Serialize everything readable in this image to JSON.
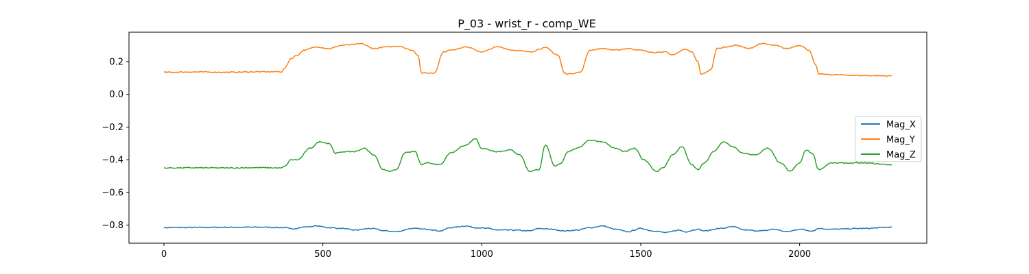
{
  "chart_data": {
    "type": "line",
    "title": "P_03 - wrist_r - comp_WE",
    "xlabel": "",
    "ylabel": "",
    "xlim": [
      -110,
      2400
    ],
    "ylim": [
      -0.91,
      0.38
    ],
    "xticks": [
      0,
      500,
      1000,
      1500,
      2000
    ],
    "xtick_labels": [
      "0",
      "500",
      "1000",
      "1500",
      "2000"
    ],
    "yticks": [
      0.2,
      0.0,
      -0.2,
      -0.4,
      -0.6,
      -0.8
    ],
    "ytick_labels": [
      "0.2",
      "0.0",
      "−0.2",
      "−0.4",
      "−0.6",
      "−0.8"
    ],
    "grid": false,
    "legend_position": "center-right",
    "series": [
      {
        "name": "Mag_X",
        "color": "#1f77b4",
        "x": [
          0,
          100,
          200,
          300,
          380,
          400,
          450,
          480,
          520,
          560,
          600,
          650,
          700,
          730,
          780,
          830,
          870,
          900,
          950,
          980,
          1020,
          1050,
          1100,
          1150,
          1180,
          1220,
          1260,
          1300,
          1340,
          1380,
          1420,
          1460,
          1500,
          1540,
          1580,
          1620,
          1640,
          1680,
          1700,
          1750,
          1790,
          1830,
          1880,
          1920,
          1960,
          2000,
          2040,
          2060,
          2100,
          2200,
          2290
        ],
        "y": [
          -0.815,
          -0.814,
          -0.813,
          -0.812,
          -0.815,
          -0.822,
          -0.81,
          -0.805,
          -0.815,
          -0.82,
          -0.83,
          -0.82,
          -0.835,
          -0.84,
          -0.82,
          -0.825,
          -0.835,
          -0.815,
          -0.805,
          -0.815,
          -0.82,
          -0.83,
          -0.83,
          -0.835,
          -0.82,
          -0.825,
          -0.835,
          -0.83,
          -0.815,
          -0.805,
          -0.825,
          -0.84,
          -0.82,
          -0.835,
          -0.845,
          -0.83,
          -0.84,
          -0.825,
          -0.835,
          -0.82,
          -0.81,
          -0.83,
          -0.835,
          -0.825,
          -0.84,
          -0.825,
          -0.835,
          -0.82,
          -0.825,
          -0.82,
          -0.812
        ]
      },
      {
        "name": "Mag_Y",
        "color": "#ff7f0e",
        "x": [
          0,
          100,
          200,
          300,
          370,
          380,
          400,
          420,
          440,
          480,
          520,
          560,
          600,
          620,
          660,
          700,
          740,
          780,
          800,
          810,
          850,
          880,
          900,
          950,
          1000,
          1050,
          1100,
          1150,
          1200,
          1240,
          1260,
          1270,
          1310,
          1340,
          1380,
          1420,
          1460,
          1500,
          1540,
          1580,
          1600,
          1640,
          1660,
          1680,
          1690,
          1700,
          1720,
          1740,
          1770,
          1800,
          1840,
          1880,
          1920,
          1960,
          2000,
          2030,
          2050,
          2060,
          2100,
          2200,
          2290
        ],
        "y": [
          0.135,
          0.137,
          0.135,
          0.138,
          0.138,
          0.16,
          0.22,
          0.24,
          0.27,
          0.29,
          0.28,
          0.3,
          0.305,
          0.31,
          0.28,
          0.29,
          0.295,
          0.27,
          0.24,
          0.13,
          0.13,
          0.26,
          0.27,
          0.29,
          0.26,
          0.29,
          0.27,
          0.26,
          0.285,
          0.24,
          0.13,
          0.125,
          0.135,
          0.27,
          0.28,
          0.27,
          0.28,
          0.27,
          0.255,
          0.26,
          0.24,
          0.275,
          0.26,
          0.2,
          0.12,
          0.13,
          0.15,
          0.28,
          0.29,
          0.3,
          0.28,
          0.31,
          0.3,
          0.28,
          0.3,
          0.27,
          0.18,
          0.125,
          0.12,
          0.115,
          0.113
        ]
      },
      {
        "name": "Mag_Z",
        "color": "#2ca02c",
        "x": [
          0,
          100,
          200,
          300,
          370,
          380,
          400,
          420,
          460,
          490,
          520,
          540,
          570,
          600,
          630,
          660,
          690,
          710,
          730,
          760,
          790,
          810,
          830,
          870,
          900,
          950,
          980,
          1000,
          1050,
          1090,
          1120,
          1150,
          1180,
          1200,
          1230,
          1250,
          1270,
          1300,
          1340,
          1380,
          1420,
          1450,
          1480,
          1510,
          1550,
          1570,
          1600,
          1630,
          1660,
          1680,
          1700,
          1730,
          1760,
          1790,
          1820,
          1860,
          1900,
          1940,
          1970,
          2000,
          2020,
          2040,
          2060,
          2100,
          2200,
          2290
        ],
        "y": [
          -0.45,
          -0.449,
          -0.45,
          -0.448,
          -0.45,
          -0.44,
          -0.4,
          -0.4,
          -0.33,
          -0.29,
          -0.3,
          -0.36,
          -0.35,
          -0.35,
          -0.33,
          -0.37,
          -0.46,
          -0.47,
          -0.46,
          -0.355,
          -0.35,
          -0.43,
          -0.42,
          -0.43,
          -0.36,
          -0.31,
          -0.27,
          -0.33,
          -0.35,
          -0.34,
          -0.37,
          -0.47,
          -0.46,
          -0.31,
          -0.44,
          -0.42,
          -0.35,
          -0.33,
          -0.28,
          -0.29,
          -0.33,
          -0.35,
          -0.33,
          -0.4,
          -0.47,
          -0.45,
          -0.37,
          -0.32,
          -0.43,
          -0.46,
          -0.42,
          -0.35,
          -0.29,
          -0.32,
          -0.36,
          -0.37,
          -0.33,
          -0.42,
          -0.47,
          -0.42,
          -0.34,
          -0.36,
          -0.46,
          -0.42,
          -0.42,
          -0.43
        ]
      }
    ]
  }
}
